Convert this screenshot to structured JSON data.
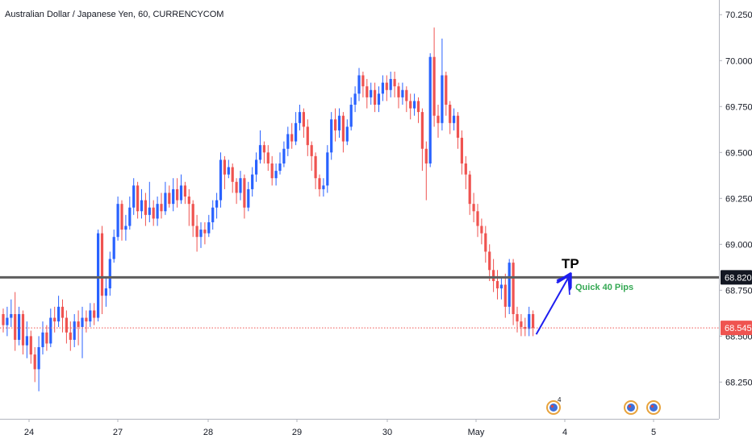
{
  "colors": {
    "up": "#2962ff",
    "down": "#ef5350",
    "level_line": "#5d5d5d",
    "current_line": "#ef5350",
    "arrow": "#1e1ef0",
    "annotation_green": "#34a853",
    "axis_text": "#131722",
    "grid": "#e0e3eb"
  },
  "chart_data": {
    "type": "candlestick",
    "title": "Australian Dollar / Japanese Yen, 60, CURRENCYCOM",
    "ylim": [
      68.05,
      70.33
    ],
    "y_ticks": [
      "70.250",
      "70.000",
      "69.750",
      "69.500",
      "69.250",
      "69.000",
      "68.750",
      "68.500",
      "68.250"
    ],
    "x_ticks": [
      "24",
      "27",
      "28",
      "29",
      "30",
      "May",
      "4",
      "5"
    ],
    "levels": {
      "tp_level": {
        "value": 68.82,
        "label": "68.820"
      },
      "current_price": {
        "value": 68.545,
        "label": "68.545"
      }
    },
    "annotations": {
      "tp_text": "TP",
      "pips_text": "Quick 40 Pips",
      "event_badge_count": "4"
    },
    "candles": [
      [
        68.62,
        68.56,
        68.65,
        68.52
      ],
      [
        68.56,
        68.6,
        68.66,
        68.5
      ],
      [
        68.6,
        68.62,
        68.7,
        68.55
      ],
      [
        68.62,
        68.48,
        68.74,
        68.42
      ],
      [
        68.48,
        68.62,
        68.66,
        68.45
      ],
      [
        68.62,
        68.45,
        68.64,
        68.4
      ],
      [
        68.45,
        68.5,
        68.58,
        68.38
      ],
      [
        68.5,
        68.4,
        68.53,
        68.35
      ],
      [
        68.4,
        68.32,
        68.44,
        68.25
      ],
      [
        68.32,
        68.44,
        68.5,
        68.2
      ],
      [
        68.44,
        68.52,
        68.58,
        68.4
      ],
      [
        68.52,
        68.46,
        68.56,
        68.42
      ],
      [
        68.46,
        68.6,
        68.65,
        68.44
      ],
      [
        68.6,
        68.58,
        68.66,
        68.52
      ],
      [
        68.58,
        68.66,
        68.72,
        68.55
      ],
      [
        68.66,
        68.6,
        68.7,
        68.52
      ],
      [
        68.6,
        68.52,
        68.64,
        68.46
      ],
      [
        68.52,
        68.48,
        68.58,
        68.42
      ],
      [
        68.48,
        68.58,
        68.62,
        68.44
      ],
      [
        68.58,
        68.55,
        68.64,
        68.45
      ],
      [
        68.55,
        68.6,
        68.66,
        68.38
      ],
      [
        68.6,
        68.58,
        68.64,
        68.52
      ],
      [
        68.58,
        68.64,
        68.68,
        68.55
      ],
      [
        68.64,
        68.6,
        68.68,
        68.56
      ],
      [
        68.6,
        69.06,
        69.08,
        68.58
      ],
      [
        69.06,
        68.72,
        69.1,
        68.62
      ],
      [
        68.72,
        68.76,
        68.82,
        68.66
      ],
      [
        68.76,
        68.92,
        68.96,
        68.72
      ],
      [
        68.92,
        69.04,
        69.08,
        68.9
      ],
      [
        69.04,
        69.22,
        69.26,
        69.02
      ],
      [
        69.22,
        69.08,
        69.24,
        69.02
      ],
      [
        69.08,
        69.1,
        69.16,
        69.02
      ],
      [
        69.1,
        69.2,
        69.26,
        69.08
      ],
      [
        69.2,
        69.32,
        69.36,
        69.16
      ],
      [
        69.32,
        69.18,
        69.34,
        69.14
      ],
      [
        69.18,
        69.24,
        69.3,
        69.14
      ],
      [
        69.24,
        69.16,
        69.28,
        69.1
      ],
      [
        69.16,
        69.2,
        69.34,
        69.12
      ],
      [
        69.2,
        69.14,
        69.24,
        69.1
      ],
      [
        69.14,
        69.22,
        69.26,
        69.1
      ],
      [
        69.22,
        69.18,
        69.28,
        69.14
      ],
      [
        69.18,
        69.28,
        69.34,
        69.16
      ],
      [
        69.28,
        69.22,
        69.32,
        69.2
      ],
      [
        69.22,
        69.3,
        69.36,
        69.18
      ],
      [
        69.3,
        69.24,
        69.36,
        69.2
      ],
      [
        69.24,
        69.32,
        69.38,
        69.22
      ],
      [
        69.32,
        69.26,
        69.34,
        69.22
      ],
      [
        69.26,
        69.22,
        69.3,
        69.1
      ],
      [
        69.22,
        69.1,
        69.24,
        69.04
      ],
      [
        69.1,
        69.04,
        69.16,
        68.96
      ],
      [
        69.04,
        69.08,
        69.12,
        68.98
      ],
      [
        69.08,
        69.06,
        69.12,
        69.0
      ],
      [
        69.06,
        69.12,
        69.16,
        69.04
      ],
      [
        69.12,
        69.2,
        69.24,
        69.08
      ],
      [
        69.2,
        69.24,
        69.28,
        69.14
      ],
      [
        69.24,
        69.46,
        69.5,
        69.2
      ],
      [
        69.46,
        69.38,
        69.48,
        69.3
      ],
      [
        69.38,
        69.42,
        69.46,
        69.36
      ],
      [
        69.42,
        69.34,
        69.44,
        69.28
      ],
      [
        69.34,
        69.28,
        69.36,
        69.22
      ],
      [
        69.28,
        69.36,
        69.4,
        69.24
      ],
      [
        69.36,
        69.2,
        69.38,
        69.14
      ],
      [
        69.2,
        69.3,
        69.34,
        69.18
      ],
      [
        69.3,
        69.38,
        69.42,
        69.26
      ],
      [
        69.38,
        69.46,
        69.5,
        69.34
      ],
      [
        69.46,
        69.54,
        69.62,
        69.44
      ],
      [
        69.54,
        69.5,
        69.56,
        69.44
      ],
      [
        69.5,
        69.44,
        69.54,
        69.4
      ],
      [
        69.44,
        69.36,
        69.48,
        69.32
      ],
      [
        69.36,
        69.4,
        69.44,
        69.32
      ],
      [
        69.4,
        69.44,
        69.5,
        69.38
      ],
      [
        69.44,
        69.52,
        69.56,
        69.42
      ],
      [
        69.52,
        69.6,
        69.64,
        69.48
      ],
      [
        69.6,
        69.56,
        69.66,
        69.52
      ],
      [
        69.56,
        69.66,
        69.72,
        69.54
      ],
      [
        69.66,
        69.72,
        69.76,
        69.62
      ],
      [
        69.72,
        69.64,
        69.74,
        69.58
      ],
      [
        69.64,
        69.54,
        69.68,
        69.48
      ],
      [
        69.54,
        69.48,
        69.56,
        69.4
      ],
      [
        69.48,
        69.36,
        69.5,
        69.3
      ],
      [
        69.36,
        69.3,
        69.38,
        69.26
      ],
      [
        69.3,
        69.32,
        69.36,
        69.26
      ],
      [
        69.32,
        69.5,
        69.54,
        69.28
      ],
      [
        69.5,
        69.68,
        69.72,
        69.46
      ],
      [
        69.68,
        69.62,
        69.74,
        69.56
      ],
      [
        69.62,
        69.7,
        69.74,
        69.58
      ],
      [
        69.7,
        69.56,
        69.72,
        69.5
      ],
      [
        69.56,
        69.64,
        69.68,
        69.54
      ],
      [
        69.64,
        69.76,
        69.8,
        69.62
      ],
      [
        69.76,
        69.82,
        69.86,
        69.72
      ],
      [
        69.82,
        69.92,
        69.96,
        69.78
      ],
      [
        69.92,
        69.86,
        69.94,
        69.8
      ],
      [
        69.86,
        69.8,
        69.9,
        69.74
      ],
      [
        69.8,
        69.84,
        69.88,
        69.76
      ],
      [
        69.84,
        69.76,
        69.88,
        69.72
      ],
      [
        69.76,
        69.82,
        69.86,
        69.72
      ],
      [
        69.82,
        69.88,
        69.92,
        69.78
      ],
      [
        69.88,
        69.84,
        69.92,
        69.78
      ],
      [
        69.84,
        69.9,
        69.94,
        69.8
      ],
      [
        69.9,
        69.86,
        69.94,
        69.8
      ],
      [
        69.86,
        69.8,
        69.88,
        69.74
      ],
      [
        69.8,
        69.84,
        69.88,
        69.76
      ],
      [
        69.84,
        69.78,
        69.86,
        69.72
      ],
      [
        69.78,
        69.74,
        69.82,
        69.68
      ],
      [
        69.74,
        69.78,
        69.82,
        69.7
      ],
      [
        69.78,
        69.72,
        69.8,
        69.66
      ],
      [
        69.72,
        69.52,
        69.74,
        69.4
      ],
      [
        69.52,
        69.44,
        69.56,
        69.24
      ],
      [
        69.44,
        70.02,
        70.04,
        69.42
      ],
      [
        70.02,
        69.7,
        70.18,
        69.64
      ],
      [
        69.7,
        69.66,
        69.76,
        69.58
      ],
      [
        69.66,
        69.92,
        70.12,
        69.62
      ],
      [
        69.92,
        69.76,
        69.94,
        69.7
      ],
      [
        69.76,
        69.66,
        69.78,
        69.6
      ],
      [
        69.66,
        69.7,
        69.74,
        69.62
      ],
      [
        69.7,
        69.58,
        69.72,
        69.52
      ],
      [
        69.58,
        69.44,
        69.62,
        69.38
      ],
      [
        69.44,
        69.38,
        69.48,
        69.3
      ],
      [
        69.38,
        69.22,
        69.4,
        69.16
      ],
      [
        69.22,
        69.18,
        69.28,
        69.12
      ],
      [
        69.18,
        69.1,
        69.22,
        69.04
      ],
      [
        69.1,
        69.06,
        69.14,
        69.0
      ],
      [
        69.06,
        68.96,
        69.1,
        68.9
      ],
      [
        68.96,
        68.86,
        69.0,
        68.8
      ],
      [
        68.86,
        68.8,
        68.92,
        68.74
      ],
      [
        68.8,
        68.76,
        68.86,
        68.7
      ],
      [
        68.76,
        68.78,
        68.82,
        68.7
      ],
      [
        68.78,
        68.66,
        68.84,
        68.6
      ],
      [
        68.66,
        68.9,
        68.92,
        68.62
      ],
      [
        68.9,
        68.62,
        68.92,
        68.56
      ],
      [
        68.62,
        68.58,
        68.66,
        68.52
      ],
      [
        68.58,
        68.55,
        68.62,
        68.5
      ],
      [
        68.55,
        68.54,
        68.6,
        68.5
      ],
      [
        68.54,
        68.62,
        68.66,
        68.5
      ],
      [
        68.62,
        68.545,
        68.64,
        68.5
      ]
    ]
  }
}
